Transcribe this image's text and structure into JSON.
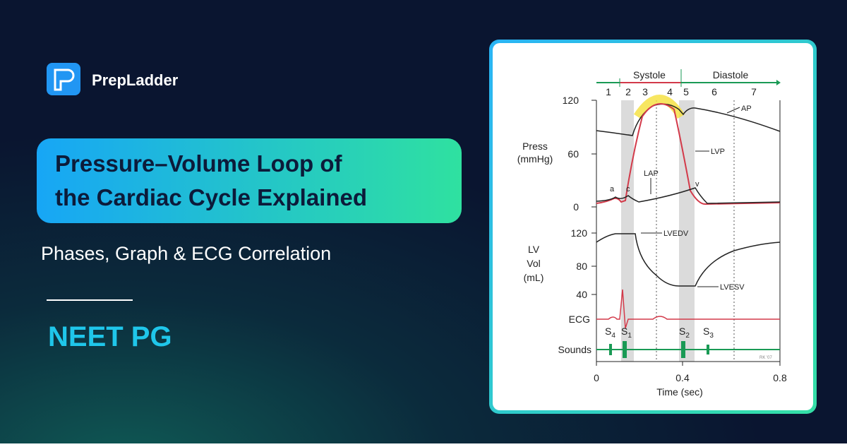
{
  "brand": {
    "name": "PrepLadder"
  },
  "headline": {
    "lines": [
      "Pressure–Volume Loop of",
      "the Cardiac Cycle Explained"
    ]
  },
  "subtitle": "Phases, Graph & ECG Correlation",
  "exam": "NEET PG",
  "diagram": {
    "phases": {
      "systole": "Systole",
      "diastole": "Diastole",
      "numbers": [
        "1",
        "2",
        "3",
        "4",
        "5",
        "6",
        "7"
      ]
    },
    "pressure_axis": {
      "label": [
        "Press",
        "(mmHg)"
      ],
      "ticks": [
        "120",
        "60",
        "0"
      ]
    },
    "volume_axis": {
      "label": [
        "LV",
        "Vol",
        "(mL)"
      ],
      "ticks": [
        "120",
        "80",
        "40"
      ]
    },
    "time_axis": {
      "label": "Time (sec)",
      "ticks": [
        "0",
        "0.4",
        "0.8"
      ]
    },
    "annotations": {
      "ap": "AP",
      "lvp": "LVP",
      "lap": "LAP",
      "a": "a",
      "c": "c",
      "v": "v",
      "lvedv": "LVEDV",
      "lvesv": "LVESV",
      "credit": "RK '07"
    },
    "ecg": "ECG",
    "sounds": {
      "label": "Sounds",
      "items": [
        {
          "letter": "S",
          "sub": "4"
        },
        {
          "letter": "S",
          "sub": "1"
        },
        {
          "letter": "S",
          "sub": "2"
        },
        {
          "letter": "S",
          "sub": "3"
        }
      ]
    }
  }
}
